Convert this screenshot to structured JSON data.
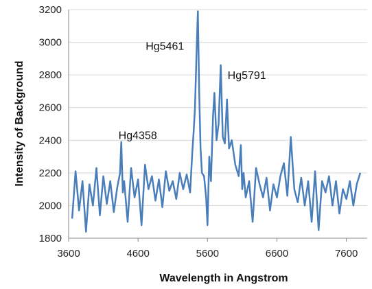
{
  "chart_data": {
    "type": "line",
    "title": "",
    "xlabel": "Wavelength in Angstrom",
    "ylabel": "Intensity of Background",
    "xlim": [
      3600,
      7900
    ],
    "ylim": [
      1800,
      3200
    ],
    "xticks": [
      3600,
      4600,
      5600,
      6600,
      7600
    ],
    "yticks": [
      1800,
      2000,
      2200,
      2400,
      2600,
      2800,
      3000,
      3200
    ],
    "grid": "horizontal",
    "legend": "none",
    "line_color": "#4a7ebb",
    "annotations": [
      {
        "text": "Hg4358",
        "x": 4358,
        "y": 2390
      },
      {
        "text": "Hg5461",
        "x": 5461,
        "y": 3190
      },
      {
        "text": "Hg5791",
        "x": 5791,
        "y": 2860
      }
    ],
    "series": [
      {
        "x": [
          3650,
          3700,
          3750,
          3800,
          3850,
          3900,
          3950,
          4000,
          4050,
          4100,
          4150,
          4200,
          4250,
          4300,
          4340,
          4358,
          4380,
          4400,
          4450,
          4500,
          4550,
          4600,
          4650,
          4700,
          4750,
          4800,
          4850,
          4900,
          4950,
          5000,
          5050,
          5100,
          5150,
          5200,
          5250,
          5300,
          5350,
          5380,
          5400,
          5420,
          5440,
          5461,
          5480,
          5500,
          5520,
          5550,
          5580,
          5600,
          5625,
          5650,
          5680,
          5700,
          5730,
          5760,
          5791,
          5820,
          5850,
          5880,
          5910,
          5950,
          6000,
          6050,
          6080,
          6100,
          6120,
          6150,
          6200,
          6250,
          6300,
          6350,
          6400,
          6450,
          6500,
          6550,
          6600,
          6650,
          6700,
          6750,
          6800,
          6850,
          6900,
          6950,
          7000,
          7050,
          7100,
          7150,
          7200,
          7250,
          7300,
          7350,
          7400,
          7450,
          7500,
          7550,
          7600,
          7650,
          7700,
          7750,
          7800
        ],
        "y": [
          1920,
          2210,
          1970,
          2150,
          1840,
          2130,
          2000,
          2230,
          1940,
          2180,
          2010,
          2150,
          1960,
          2110,
          2200,
          2390,
          2080,
          2150,
          1900,
          2230,
          2050,
          2160,
          1880,
          2250,
          2100,
          2180,
          2030,
          2160,
          1990,
          2210,
          2090,
          2150,
          2040,
          2200,
          2100,
          2190,
          2080,
          2320,
          2450,
          2600,
          2900,
          3190,
          2700,
          2350,
          2200,
          2180,
          2050,
          1880,
          2300,
          2150,
          2550,
          2690,
          2400,
          2500,
          2860,
          2420,
          2380,
          2650,
          2350,
          2400,
          2250,
          2180,
          2370,
          2100,
          2200,
          2050,
          2150,
          1900,
          2230,
          2130,
          2050,
          2170,
          1970,
          2130,
          2050,
          2180,
          2260,
          2060,
          2420,
          2100,
          2020,
          2170,
          2000,
          2150,
          1900,
          2210,
          1850,
          2150,
          2080,
          2180,
          2000,
          2150,
          1950,
          2100,
          2040,
          2150,
          2000,
          2130,
          2200
        ]
      }
    ]
  }
}
